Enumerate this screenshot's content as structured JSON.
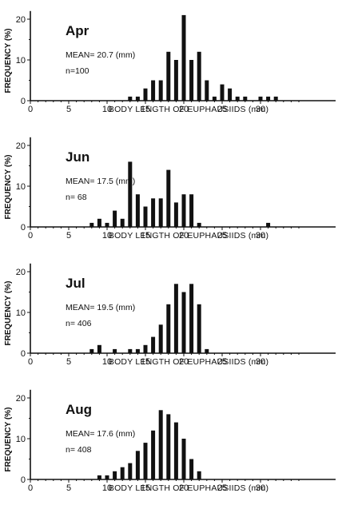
{
  "chart_data": [
    {
      "type": "bar",
      "title": "Apr",
      "mean_label": "MEAN= 20.7 (mm)",
      "n_label": "n=100",
      "xlabel": "BODY LENGTH OF EUPHAUSIIDS (mm)",
      "ylabel": "FREQUENCY (%)",
      "xlim": [
        0,
        35
      ],
      "ylim": [
        0,
        22
      ],
      "xticks": [
        0,
        5,
        10,
        15,
        20,
        25,
        30
      ],
      "yticks": [
        0,
        10,
        20
      ],
      "x": [
        13,
        14,
        15,
        16,
        17,
        18,
        19,
        20,
        21,
        22,
        23,
        24,
        25,
        26,
        27,
        28,
        30,
        31,
        32
      ],
      "values": [
        1,
        1,
        3,
        5,
        5,
        12,
        10,
        21,
        10,
        12,
        5,
        1,
        4,
        3,
        1,
        1,
        1,
        1,
        1
      ]
    },
    {
      "type": "bar",
      "title": "Jun",
      "mean_label": "MEAN= 17.5 (mm)",
      "n_label": "n= 68",
      "xlabel": "BODY LENGTH OF EUPHAUSIIDS (mm)",
      "ylabel": "FREQUENCY (%)",
      "xlim": [
        0,
        35
      ],
      "ylim": [
        0,
        22
      ],
      "xticks": [
        0,
        5,
        10,
        15,
        20,
        25,
        30
      ],
      "yticks": [
        0,
        10,
        20
      ],
      "x": [
        8,
        9,
        10,
        11,
        12,
        13,
        14,
        15,
        16,
        17,
        18,
        19,
        20,
        21,
        22,
        31
      ],
      "values": [
        1,
        2,
        1,
        4,
        2,
        16,
        8,
        5,
        7,
        7,
        14,
        6,
        8,
        8,
        1,
        1
      ]
    },
    {
      "type": "bar",
      "title": "Jul",
      "mean_label": "MEAN= 19.5 (mm)",
      "n_label": "n= 406",
      "xlabel": "BODY LENGTH OF EUPHAUSIIDS (mm)",
      "ylabel": "FREQUENCY (%)",
      "xlim": [
        0,
        35
      ],
      "ylim": [
        0,
        22
      ],
      "xticks": [
        0,
        5,
        10,
        15,
        20,
        25,
        30
      ],
      "yticks": [
        0,
        10,
        20
      ],
      "x": [
        8,
        9,
        11,
        13,
        14,
        15,
        16,
        17,
        18,
        19,
        20,
        21,
        22,
        23
      ],
      "values": [
        1,
        2,
        1,
        1,
        1,
        2,
        4,
        7,
        12,
        17,
        15,
        17,
        12,
        1
      ]
    },
    {
      "type": "bar",
      "title": "Aug",
      "mean_label": "MEAN= 17.6 (mm)",
      "n_label": "n= 408",
      "xlabel": "BODY LENGTH OF EUPHAUSIIDS (mm)",
      "ylabel": "FREQUENCY (%)",
      "xlim": [
        0,
        35
      ],
      "ylim": [
        0,
        22
      ],
      "xticks": [
        0,
        5,
        10,
        15,
        20,
        25,
        30
      ],
      "yticks": [
        0,
        10,
        20
      ],
      "x": [
        9,
        10,
        11,
        12,
        13,
        14,
        15,
        16,
        17,
        18,
        19,
        20,
        21,
        22
      ],
      "values": [
        1,
        1,
        2,
        3,
        4,
        7,
        9,
        12,
        17,
        16,
        14,
        10,
        5,
        2
      ]
    }
  ]
}
